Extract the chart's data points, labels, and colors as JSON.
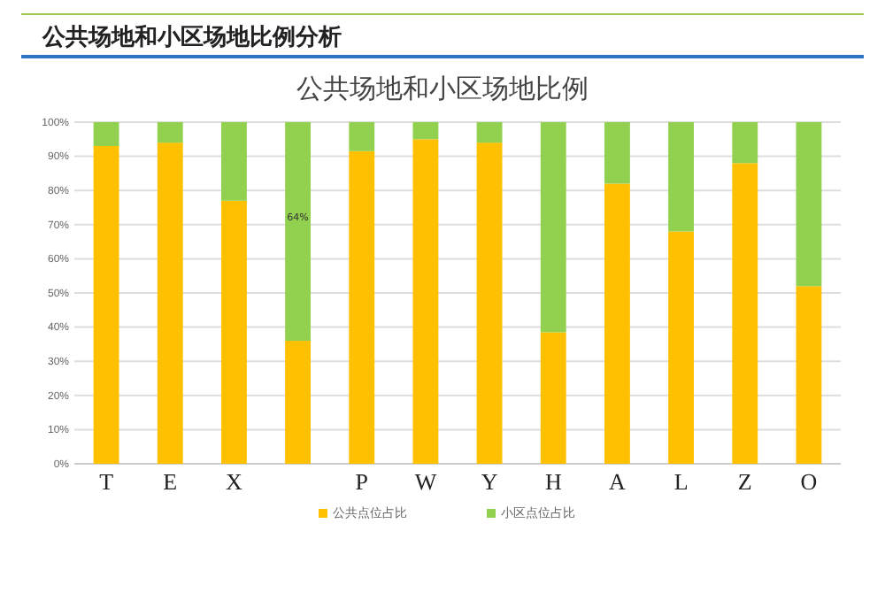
{
  "chart_data": {
    "type": "bar",
    "title": "公共场地和小区场地比例分析",
    "subtitle": "公共场地和小区场地比例",
    "categories": [
      "T",
      "E",
      "X",
      null,
      "P",
      "W",
      "Y",
      "H",
      "A",
      "L",
      "Z",
      "O"
    ],
    "stacked": true,
    "series": [
      {
        "name": "公共点位占比",
        "color": "#ffc000",
        "values": [
          93,
          94,
          77,
          36,
          91.5,
          95,
          94,
          38.5,
          82,
          68,
          88,
          52
        ]
      },
      {
        "name": "小区点位占比",
        "color": "#92d050",
        "values": [
          7,
          6,
          23,
          64,
          8.5,
          5,
          6,
          61.5,
          18,
          32,
          12,
          48
        ],
        "value_labels": [
          null,
          null,
          null,
          "64%",
          null,
          null,
          null,
          null,
          null,
          null,
          null,
          null
        ]
      }
    ],
    "ylim": [
      0,
      100
    ],
    "yticks": [
      {
        "value": 0,
        "label": "0%"
      },
      {
        "value": 10,
        "label": "10%"
      },
      {
        "value": 20,
        "label": "20%"
      },
      {
        "value": 30,
        "label": "30%"
      },
      {
        "value": 40,
        "label": "40%"
      },
      {
        "value": 50,
        "label": "50%"
      },
      {
        "value": 60,
        "label": "60%"
      },
      {
        "value": 70,
        "label": "70%"
      },
      {
        "value": 80,
        "label": "80%"
      },
      {
        "value": 90,
        "label": "90%"
      },
      {
        "value": 100,
        "label": "100%"
      }
    ],
    "grid": "y",
    "legend": "bottom"
  }
}
